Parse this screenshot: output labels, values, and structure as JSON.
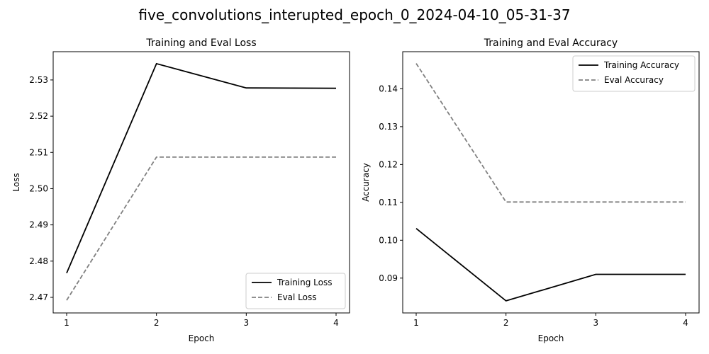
{
  "figure_title": "five_convolutions_interupted_epoch_0_2024-04-10_05-31-37",
  "chart_data": [
    {
      "type": "line",
      "title": "Training and Eval Loss",
      "xlabel": "Epoch",
      "ylabel": "Loss",
      "x": [
        1,
        2,
        3,
        4
      ],
      "xticks": [
        "1",
        "2",
        "3",
        "4"
      ],
      "xlim": [
        0.85,
        4.15
      ],
      "ylim": [
        2.4657,
        2.5378
      ],
      "yticks": [
        2.47,
        2.48,
        2.49,
        2.5,
        2.51,
        2.52,
        2.53
      ],
      "ytick_labels": [
        "2.47",
        "2.48",
        "2.49",
        "2.50",
        "2.51",
        "2.52",
        "2.53"
      ],
      "grid": false,
      "legend_position": "lower-right",
      "series": [
        {
          "name": "Training Loss",
          "values": [
            2.4767,
            2.5345,
            2.5278,
            2.5277
          ],
          "color": "#000000",
          "style": "solid"
        },
        {
          "name": "Eval Loss",
          "values": [
            2.4692,
            2.5087,
            2.5087,
            2.5087
          ],
          "color": "#808080",
          "style": "dashed"
        }
      ]
    },
    {
      "type": "line",
      "title": "Training and Eval Accuracy",
      "xlabel": "Epoch",
      "ylabel": "Accuracy",
      "x": [
        1,
        2,
        3,
        4
      ],
      "xticks": [
        "1",
        "2",
        "3",
        "4"
      ],
      "xlim": [
        0.85,
        4.15
      ],
      "ylim": [
        0.0808,
        0.1498
      ],
      "yticks": [
        0.09,
        0.1,
        0.11,
        0.12,
        0.13,
        0.14
      ],
      "ytick_labels": [
        "0.09",
        "0.10",
        "0.11",
        "0.12",
        "0.13",
        "0.14"
      ],
      "grid": false,
      "legend_position": "upper-right",
      "series": [
        {
          "name": "Training Accuracy",
          "values": [
            0.1031,
            0.084,
            0.091,
            0.091
          ],
          "color": "#000000",
          "style": "solid"
        },
        {
          "name": "Eval Accuracy",
          "values": [
            0.1467,
            0.1101,
            0.1101,
            0.1101
          ],
          "color": "#808080",
          "style": "dashed"
        }
      ]
    }
  ]
}
